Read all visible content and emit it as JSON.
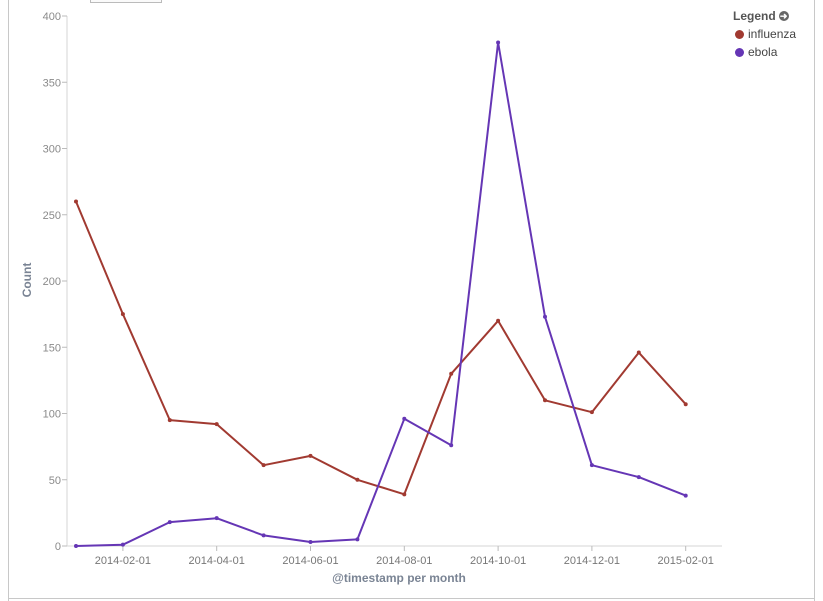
{
  "legend": {
    "title": "Legend",
    "toggle_icon": "arrow-circle-right-icon",
    "items": [
      {
        "label": "influenza",
        "color": "#a13a31"
      },
      {
        "label": "ebola",
        "color": "#6536b5"
      }
    ]
  },
  "chart_data": {
    "type": "line",
    "xlabel": "@timestamp per month",
    "ylabel": "Count",
    "ylim": [
      0,
      400
    ],
    "yticks": [
      0,
      50,
      100,
      150,
      200,
      250,
      300,
      350,
      400
    ],
    "xticks": [
      "2014-02-01",
      "2014-04-01",
      "2014-06-01",
      "2014-08-01",
      "2014-10-01",
      "2014-12-01",
      "2015-02-01"
    ],
    "x": [
      "2014-01-01",
      "2014-02-01",
      "2014-03-01",
      "2014-04-01",
      "2014-05-01",
      "2014-06-01",
      "2014-07-01",
      "2014-08-01",
      "2014-09-01",
      "2014-10-01",
      "2014-11-01",
      "2014-12-01",
      "2015-01-01",
      "2015-02-01"
    ],
    "series": [
      {
        "name": "influenza",
        "color": "#a13a31",
        "values": [
          260,
          175,
          95,
          92,
          61,
          68,
          50,
          39,
          130,
          170,
          110,
          101,
          146,
          107
        ]
      },
      {
        "name": "ebola",
        "color": "#6536b5",
        "values": [
          0,
          1,
          18,
          21,
          8,
          3,
          5,
          96,
          76,
          380,
          173,
          61,
          52,
          38
        ]
      }
    ],
    "grid": false,
    "legend_position": "top-right"
  }
}
